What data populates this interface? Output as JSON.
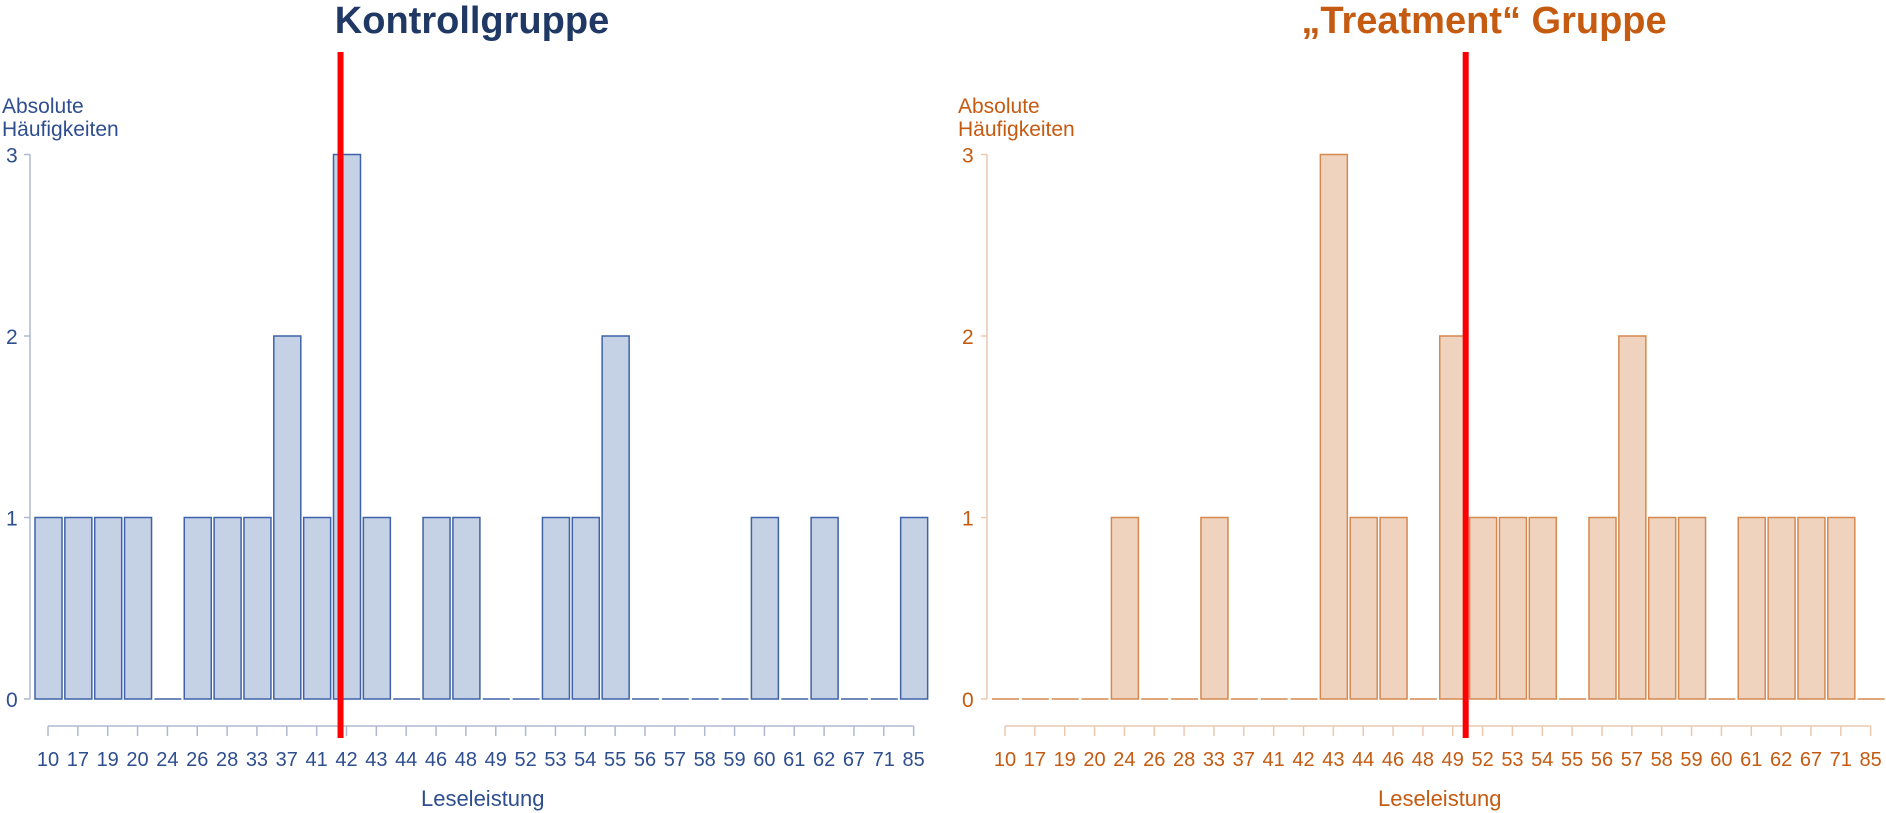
{
  "chart_data": [
    {
      "type": "bar",
      "title": "Kontrollgruppe",
      "ylabel": "Absolute\nHäufigkeiten",
      "xlabel": "Leseleistung",
      "ylim": [
        0,
        3
      ],
      "yticks": [
        0,
        1,
        2,
        3
      ],
      "categories": [
        "10",
        "17",
        "19",
        "20",
        "24",
        "26",
        "28",
        "33",
        "37",
        "41",
        "42",
        "43",
        "44",
        "46",
        "48",
        "49",
        "52",
        "53",
        "54",
        "55",
        "56",
        "57",
        "58",
        "59",
        "60",
        "61",
        "62",
        "67",
        "71",
        "85"
      ],
      "values": [
        1,
        1,
        1,
        1,
        0,
        1,
        1,
        1,
        2,
        1,
        3,
        1,
        0,
        1,
        1,
        0,
        0,
        1,
        1,
        2,
        0,
        0,
        0,
        0,
        1,
        0,
        1,
        0,
        0,
        1
      ],
      "reference_line_x": 41.8,
      "colors": {
        "text": "#2E4E8F",
        "title": "#1F3864",
        "bar_fill": "#C5D1E5",
        "bar_stroke": "#3F62A8",
        "axis": "#AEB8CF",
        "reference_line": "#FF0000"
      }
    },
    {
      "type": "bar",
      "title": "„Treatment“ Gruppe",
      "ylabel": "Absolute\nHäufigkeiten",
      "xlabel": "Leseleistung",
      "ylim": [
        0,
        3
      ],
      "yticks": [
        0,
        1,
        2,
        3
      ],
      "categories": [
        "10",
        "17",
        "19",
        "20",
        "24",
        "26",
        "28",
        "33",
        "37",
        "41",
        "42",
        "43",
        "44",
        "46",
        "48",
        "49",
        "52",
        "53",
        "54",
        "55",
        "56",
        "57",
        "58",
        "59",
        "60",
        "61",
        "62",
        "67",
        "71",
        "85"
      ],
      "values": [
        0,
        0,
        0,
        0,
        1,
        0,
        0,
        1,
        0,
        0,
        0,
        3,
        1,
        1,
        0,
        2,
        1,
        1,
        1,
        0,
        1,
        2,
        1,
        1,
        0,
        1,
        1,
        1,
        1,
        0
      ],
      "reference_line_x": 50.3,
      "colors": {
        "text": "#C55A11",
        "title": "#C55A11",
        "bar_fill": "#EFD3BE",
        "bar_stroke": "#D6884E",
        "axis": "#EAC9B0",
        "reference_line": "#FF0000"
      }
    }
  ]
}
